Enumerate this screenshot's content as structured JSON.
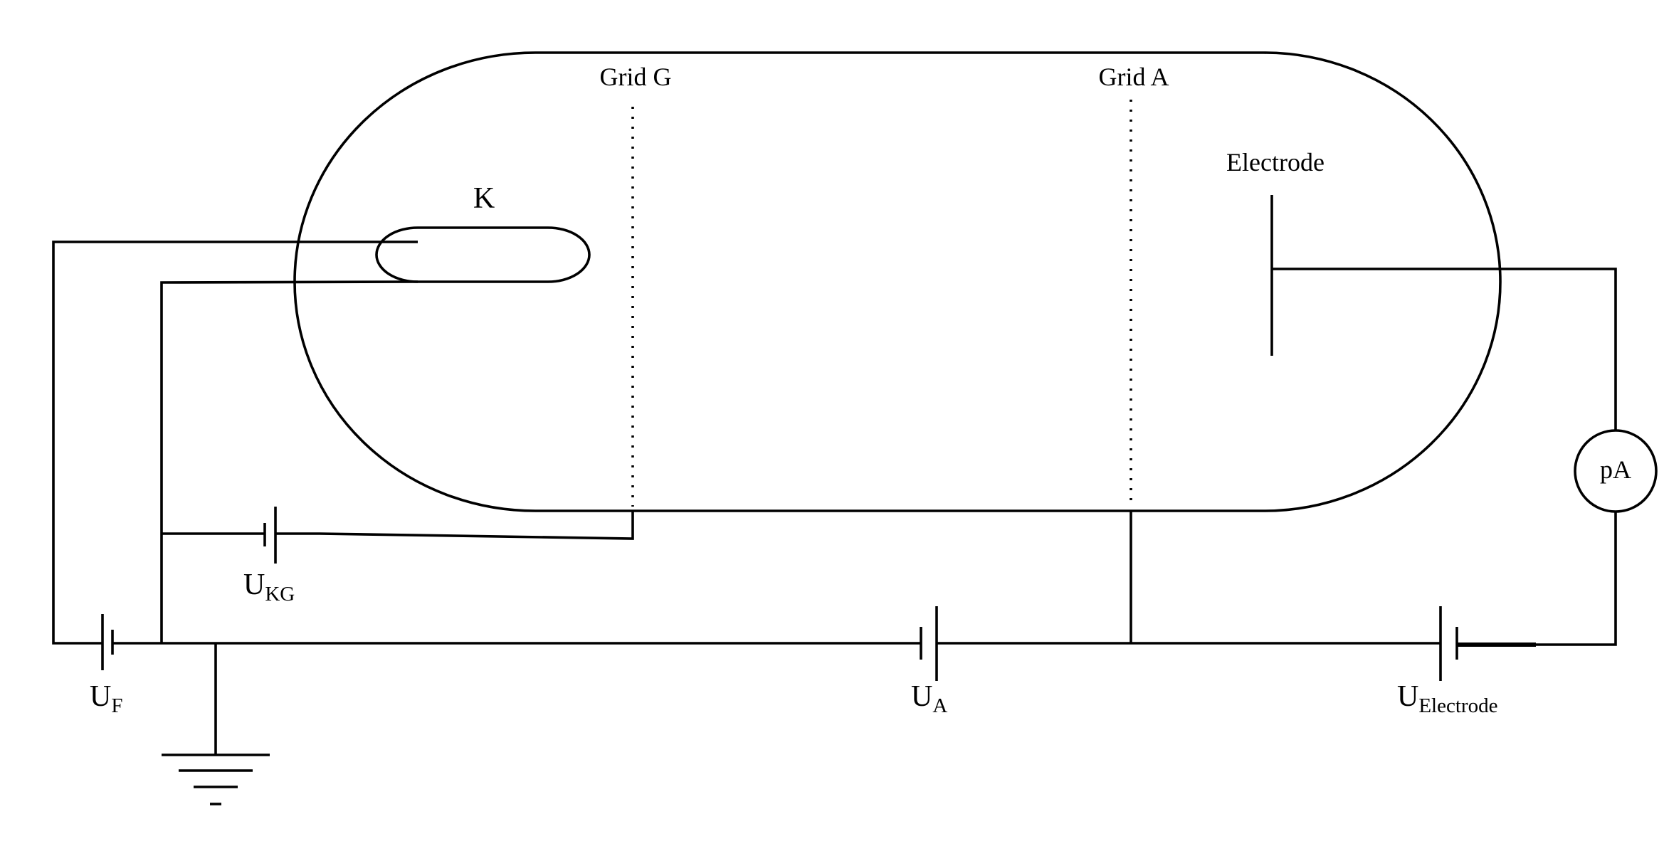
{
  "diagram": {
    "description_labels": {
      "cathode": "K",
      "grid_g": "Grid G",
      "grid_a": "Grid A",
      "electrode": "Electrode",
      "ammeter": "pA"
    },
    "sources": {
      "u_f": {
        "symbol": "U",
        "subscript": "F"
      },
      "u_kg": {
        "symbol": "U",
        "subscript": "KG"
      },
      "u_a": {
        "symbol": "U",
        "subscript": "A"
      },
      "u_electrode": {
        "symbol": "U",
        "subscript": "Electrode"
      }
    }
  }
}
